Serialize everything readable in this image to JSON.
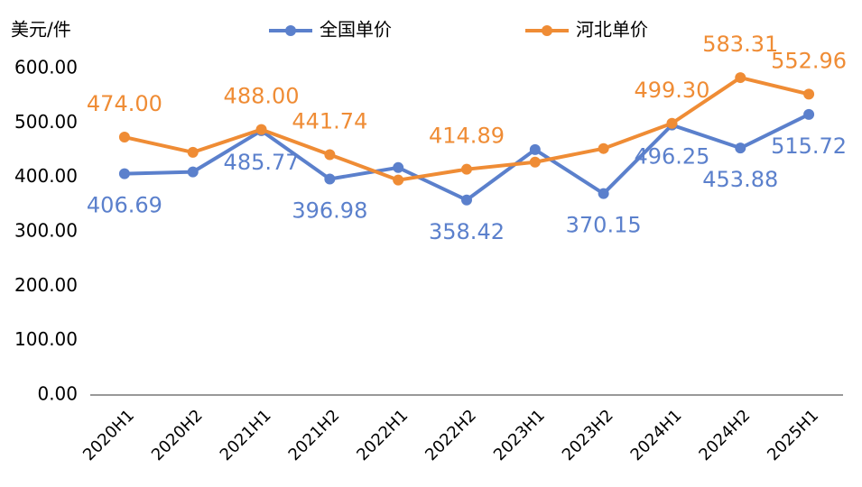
{
  "chart_data": {
    "type": "line",
    "y_axis_label": "美元/件",
    "categories": [
      "2020H1",
      "2020H2",
      "2021H1",
      "2021H2",
      "2022H1",
      "2022H2",
      "2023H1",
      "2023H2",
      "2024H1",
      "2024H2",
      "2025H1"
    ],
    "series": [
      {
        "name": "全国单价",
        "color": "#5b80cc",
        "values": [
          406.69,
          410,
          485.77,
          396.98,
          418,
          358.42,
          451,
          370.15,
          496.25,
          453.88,
          515.72
        ],
        "value_labels": [
          "406.69",
          null,
          "485.77",
          "396.98",
          null,
          "358.42",
          null,
          "370.15",
          "496.25",
          "453.88",
          "515.72"
        ]
      },
      {
        "name": "河北单价",
        "color": "#ef8c35",
        "values": [
          474,
          446,
          488,
          441.74,
          395,
          414.89,
          428,
          453,
          499.3,
          583.31,
          552.96
        ],
        "value_labels": [
          "474.00",
          null,
          "488.00",
          "441.74",
          null,
          "414.89",
          null,
          null,
          "499.30",
          "583.31",
          "552.96"
        ]
      }
    ],
    "ylim": [
      0,
      600
    ],
    "yticks": [
      {
        "value": 0,
        "label": "0.00"
      },
      {
        "value": 100,
        "label": "100.00"
      },
      {
        "value": 200,
        "label": "200.00"
      },
      {
        "value": 300,
        "label": "300.00"
      },
      {
        "value": 400,
        "label": "400.00"
      },
      {
        "value": 500,
        "label": "500.00"
      },
      {
        "value": 600,
        "label": "600.00"
      }
    ],
    "grid": false,
    "legend": "top"
  }
}
